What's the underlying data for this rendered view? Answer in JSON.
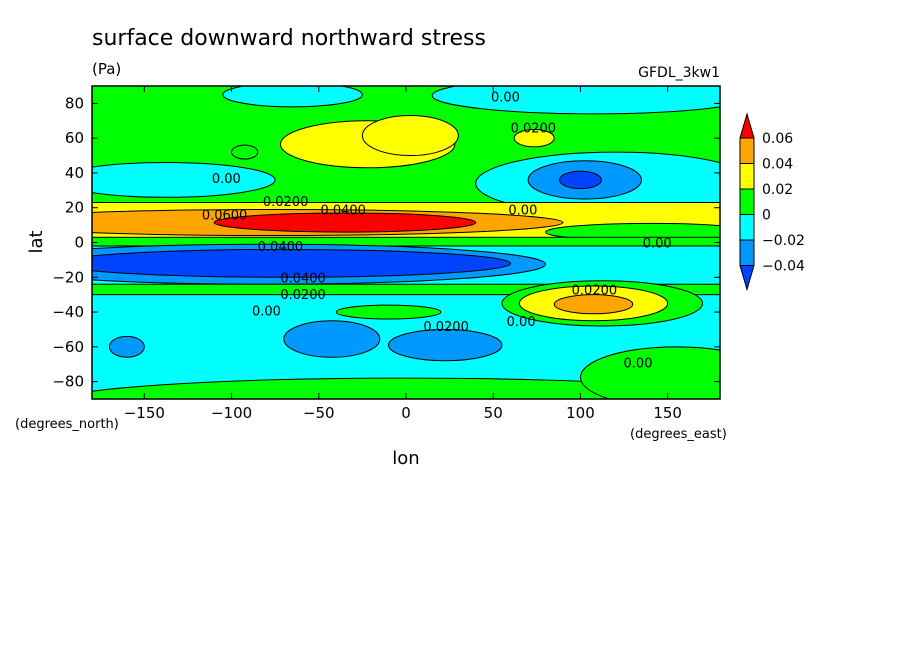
{
  "chart_data": {
    "type": "heatmap",
    "title": "surface downward northward stress",
    "units": "(Pa)",
    "model_label": "GFDL_3kw1",
    "xlabel": "lon",
    "ylabel": "lat",
    "x_units": "(degrees_east)",
    "y_units": "(degrees_north)",
    "xlim": [
      -180,
      180
    ],
    "ylim": [
      -90,
      90
    ],
    "xticks": [
      -150,
      -100,
      -50,
      0,
      50,
      100,
      150
    ],
    "xtick_labels": [
      "−150",
      "−100",
      "−50",
      "0",
      "50",
      "100",
      "150"
    ],
    "yticks": [
      80,
      60,
      40,
      20,
      0,
      -20,
      -40,
      -60,
      -80
    ],
    "ytick_labels": [
      "80",
      "60",
      "40",
      "20",
      "0",
      "−20",
      "−40",
      "−60",
      "−80"
    ],
    "colorbar": {
      "levels": [
        "0.06",
        "0.04",
        "0.02",
        "0",
        "−0.02",
        "−0.04"
      ],
      "colors": [
        "#ff0000",
        "#ffa500",
        "#ffff00",
        "#00ff00",
        "#00ffff",
        "#0099ff",
        "#0044ff"
      ]
    },
    "regions": [
      {
        "color": "#00ffff",
        "shape": "blob",
        "lon": [
          -105,
          -25
        ],
        "lat": [
          78,
          92
        ]
      },
      {
        "color": "#00ffff",
        "shape": "blob",
        "lon": [
          15,
          200
        ],
        "lat": [
          74,
          95
        ]
      },
      {
        "color": "#00ffff",
        "shape": "blob",
        "lon": [
          -200,
          -75
        ],
        "lat": [
          26,
          46
        ]
      },
      {
        "color": "#00ffff",
        "shape": "blob",
        "lon": [
          40,
          200
        ],
        "lat": [
          16,
          52
        ]
      },
      {
        "color": "#0099ff",
        "shape": "blob",
        "lon": [
          70,
          135
        ],
        "lat": [
          25,
          47
        ]
      },
      {
        "color": "#0044ff",
        "shape": "blob",
        "lon": [
          88,
          112
        ],
        "lat": [
          31,
          41
        ]
      },
      {
        "color": "#ffff00",
        "shape": "blob",
        "lon": [
          -72,
          28
        ],
        "lat": [
          43,
          70
        ]
      },
      {
        "color": "#ffff00",
        "shape": "blob",
        "lon": [
          -25,
          30
        ],
        "lat": [
          50,
          73
        ]
      },
      {
        "color": "#ffff00",
        "shape": "blob",
        "lon": [
          62,
          85
        ],
        "lat": [
          55,
          65
        ]
      },
      {
        "color": "#00ff00",
        "shape": "blob",
        "lon": [
          -100,
          -85
        ],
        "lat": [
          48,
          56
        ]
      },
      {
        "color": "#ffff00",
        "shape": "band",
        "lon": [
          -180,
          180
        ],
        "lat": [
          2,
          23
        ]
      },
      {
        "color": "#00ff00",
        "shape": "blob",
        "lon": [
          80,
          200
        ],
        "lat": [
          1,
          11
        ]
      },
      {
        "color": "#ffa500",
        "shape": "blob",
        "lon": [
          -240,
          90
        ],
        "lat": [
          4,
          19
        ]
      },
      {
        "color": "#ff0000",
        "shape": "blob",
        "lon": [
          -110,
          40
        ],
        "lat": [
          6,
          17
        ]
      },
      {
        "color": "#00ff00",
        "shape": "band",
        "lon": [
          -180,
          180
        ],
        "lat": [
          -2,
          3
        ]
      },
      {
        "color": "#00ffff",
        "shape": "band",
        "lon": [
          -180,
          180
        ],
        "lat": [
          -88,
          -2
        ]
      },
      {
        "color": "#0099ff",
        "shape": "blob",
        "lon": [
          -240,
          80
        ],
        "lat": [
          -24,
          -1
        ]
      },
      {
        "color": "#0044ff",
        "shape": "blob",
        "lon": [
          -200,
          60
        ],
        "lat": [
          -20,
          -4
        ]
      },
      {
        "color": "#00ff00",
        "shape": "band",
        "lon": [
          -180,
          180
        ],
        "lat": [
          -30,
          -24
        ]
      },
      {
        "color": "#00ff00",
        "shape": "blob",
        "lon": [
          -40,
          20
        ],
        "lat": [
          -44,
          -36
        ]
      },
      {
        "color": "#00ff00",
        "shape": "blob",
        "lon": [
          55,
          170
        ],
        "lat": [
          -48,
          -22
        ]
      },
      {
        "color": "#ffff00",
        "shape": "blob",
        "lon": [
          65,
          150
        ],
        "lat": [
          -45,
          -25
        ]
      },
      {
        "color": "#ffa500",
        "shape": "blob",
        "lon": [
          85,
          130
        ],
        "lat": [
          -41,
          -30
        ]
      },
      {
        "color": "#0099ff",
        "shape": "blob",
        "lon": [
          -70,
          -15
        ],
        "lat": [
          -66,
          -45
        ]
      },
      {
        "color": "#0099ff",
        "shape": "blob",
        "lon": [
          -10,
          55
        ],
        "lat": [
          -68,
          -50
        ]
      },
      {
        "color": "#0099ff",
        "shape": "blob",
        "lon": [
          -170,
          -150
        ],
        "lat": [
          -66,
          -54
        ]
      },
      {
        "color": "#00ff00",
        "shape": "blob",
        "lon": [
          -200,
          200
        ],
        "lat": [
          -105,
          -78
        ]
      },
      {
        "color": "#00ff00",
        "shape": "blob",
        "lon": [
          100,
          210
        ],
        "lat": [
          -95,
          -60
        ]
      }
    ],
    "contour_labels": [
      {
        "text": "0.00",
        "lon": 57,
        "lat": 84
      },
      {
        "text": "0.0200",
        "lon": 73,
        "lat": 66
      },
      {
        "text": "0.00",
        "lon": -103,
        "lat": 37
      },
      {
        "text": "0.0200",
        "lon": -69,
        "lat": 24
      },
      {
        "text": "0.0400",
        "lon": -36,
        "lat": 19
      },
      {
        "text": "0.0600",
        "lon": -104,
        "lat": 16
      },
      {
        "text": "0.00",
        "lon": 67,
        "lat": 19
      },
      {
        "text": "0.00",
        "lon": 144,
        "lat": 0
      },
      {
        "text": "0.0400",
        "lon": -72,
        "lat": -2
      },
      {
        "text": "0.0400",
        "lon": -59,
        "lat": -20
      },
      {
        "text": "0.0200",
        "lon": -59,
        "lat": -25
      },
      {
        "text": "0.00",
        "lon": -80,
        "lat": -38
      },
      {
        "text": "0.0200",
        "lon": 108,
        "lat": -27
      },
      {
        "text": "0.0200",
        "lon": 23,
        "lat": -48
      },
      {
        "text": "0.00",
        "lon": 66,
        "lat": -45
      },
      {
        "text": "0.00",
        "lon": 133,
        "lat": -69
      }
    ]
  }
}
